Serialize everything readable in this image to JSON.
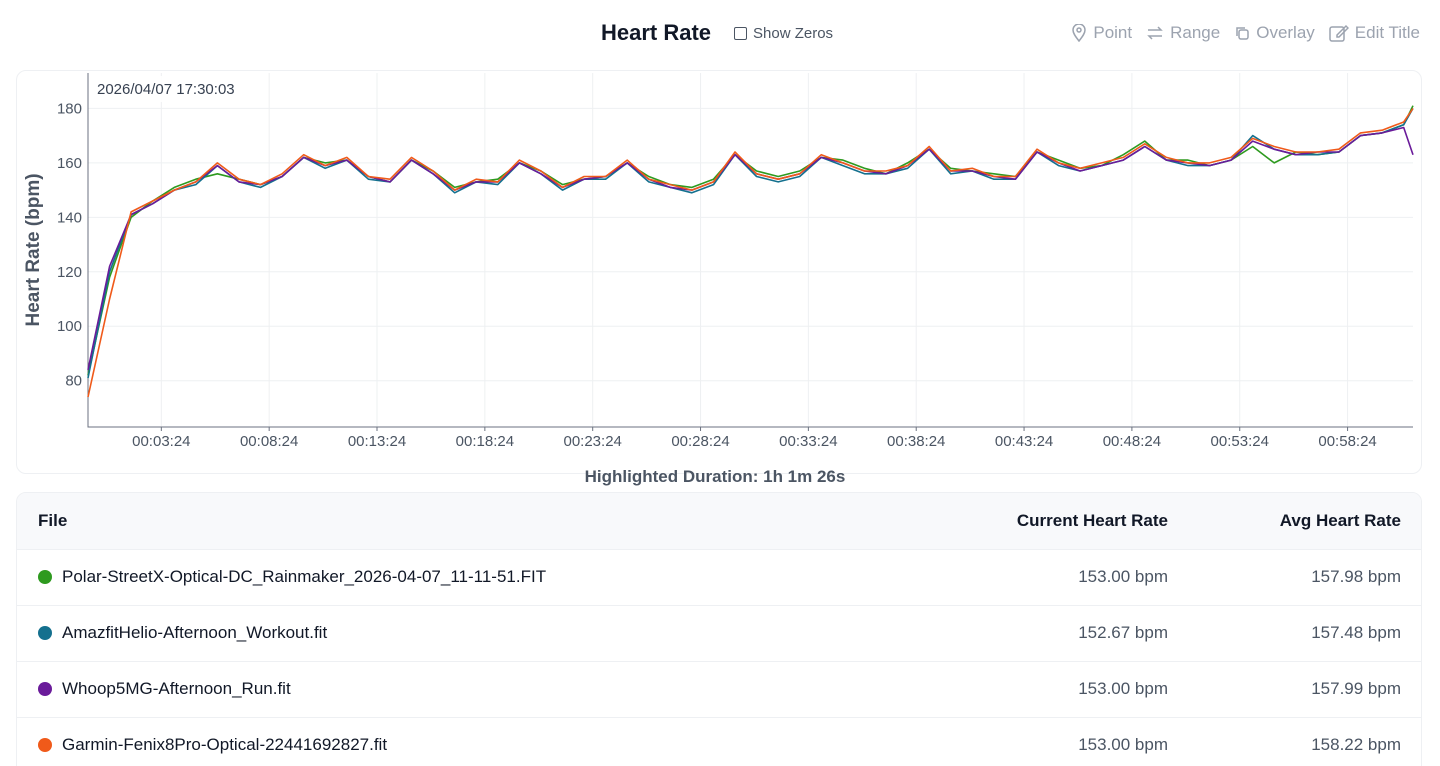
{
  "header": {
    "title": "Heart Rate",
    "toggle": "Show Zeros",
    "tools": [
      "Point",
      "Range",
      "Overlay",
      "Edit Title"
    ]
  },
  "chart_data": {
    "type": "line",
    "ylabel": "Heart Rate (bpm)",
    "tooltip": "2026/04/07 17:30:03",
    "caption": "Highlighted Duration: 1h 1m 26s",
    "x": [
      0,
      60,
      120,
      180,
      240,
      300,
      360,
      420,
      480,
      540,
      600,
      660,
      720,
      780,
      840,
      900,
      960,
      1020,
      1080,
      1140,
      1200,
      1260,
      1320,
      1380,
      1440,
      1500,
      1560,
      1620,
      1680,
      1740,
      1800,
      1860,
      1920,
      1980,
      2040,
      2100,
      2160,
      2220,
      2280,
      2340,
      2400,
      2460,
      2520,
      2580,
      2640,
      2700,
      2760,
      2820,
      2880,
      2940,
      3000,
      3060,
      3120,
      3180,
      3240,
      3300,
      3360,
      3420,
      3480,
      3540,
      3600,
      3660,
      3686
    ],
    "xlim": [
      0,
      3686
    ],
    "xticks": [
      {
        "value": 204,
        "label": "00:03:24"
      },
      {
        "value": 504,
        "label": "00:08:24"
      },
      {
        "value": 804,
        "label": "00:13:24"
      },
      {
        "value": 1104,
        "label": "00:18:24"
      },
      {
        "value": 1404,
        "label": "00:23:24"
      },
      {
        "value": 1704,
        "label": "00:28:24"
      },
      {
        "value": 2004,
        "label": "00:33:24"
      },
      {
        "value": 2304,
        "label": "00:38:24"
      },
      {
        "value": 2604,
        "label": "00:43:24"
      },
      {
        "value": 2904,
        "label": "00:48:24"
      },
      {
        "value": 3204,
        "label": "00:53:24"
      },
      {
        "value": 3504,
        "label": "00:58:24"
      }
    ],
    "ylim": [
      63,
      193
    ],
    "yticks": [
      80,
      100,
      120,
      140,
      160,
      180
    ],
    "grid": true,
    "series": [
      {
        "name": "Polar-StreetX-Optical-DC_Rainmaker_2026-04-07_11-11-51.FIT",
        "color": "#2e9a1f",
        "values": [
          82,
          118,
          140,
          146,
          151,
          154,
          156,
          154,
          152,
          155,
          162,
          160,
          161,
          155,
          153,
          161,
          157,
          151,
          153,
          154,
          160,
          157,
          152,
          154,
          155,
          160,
          155,
          152,
          151,
          154,
          163,
          157,
          155,
          157,
          162,
          161,
          158,
          156,
          160,
          165,
          158,
          157,
          156,
          155,
          164,
          161,
          158,
          159,
          163,
          168,
          161,
          161,
          159,
          161,
          166,
          160,
          164,
          163,
          164,
          170,
          171,
          174,
          181
        ]
      },
      {
        "name": "AmazfitHelio-Afternoon_Workout.fit",
        "color": "#14708e",
        "values": [
          81,
          120,
          141,
          145,
          150,
          152,
          159,
          153,
          151,
          155,
          162,
          158,
          161,
          154,
          153,
          161,
          156,
          149,
          153,
          152,
          160,
          156,
          150,
          154,
          154,
          160,
          153,
          151,
          149,
          152,
          163,
          155,
          153,
          155,
          162,
          159,
          156,
          156,
          158,
          165,
          156,
          157,
          154,
          154,
          164,
          159,
          157,
          159,
          161,
          166,
          161,
          159,
          159,
          161,
          170,
          165,
          163,
          163,
          164,
          170,
          171,
          174,
          180
        ]
      },
      {
        "name": "Whoop5MG-Afternoon_Run.fit",
        "color": "#6a1b9a",
        "values": [
          84,
          122,
          141,
          145,
          150,
          153,
          159,
          153,
          152,
          155,
          162,
          159,
          161,
          155,
          153,
          161,
          156,
          150,
          153,
          153,
          160,
          156,
          151,
          154,
          155,
          160,
          154,
          151,
          150,
          153,
          163,
          156,
          154,
          156,
          162,
          160,
          157,
          156,
          159,
          165,
          157,
          157,
          155,
          154,
          164,
          160,
          157,
          159,
          161,
          166,
          161,
          160,
          159,
          161,
          168,
          165,
          163,
          164,
          164,
          170,
          171,
          173,
          163
        ]
      },
      {
        "name": "Garmin-Fenix8Pro-Optical-22441692827.fit",
        "color": "#f05a1a",
        "values": [
          74,
          110,
          142,
          146,
          150,
          153,
          160,
          154,
          152,
          156,
          163,
          159,
          162,
          155,
          154,
          162,
          157,
          150,
          154,
          153,
          161,
          157,
          151,
          155,
          155,
          161,
          154,
          152,
          150,
          153,
          164,
          156,
          154,
          156,
          163,
          160,
          157,
          157,
          159,
          166,
          157,
          158,
          155,
          155,
          165,
          160,
          158,
          160,
          162,
          167,
          162,
          160,
          160,
          162,
          169,
          166,
          164,
          164,
          165,
          171,
          172,
          175,
          180
        ]
      }
    ]
  },
  "table": {
    "headers": [
      "File",
      "Current Heart Rate",
      "Avg Heart Rate"
    ],
    "rows": [
      [
        "Polar-StreetX-Optical-DC_Rainmaker_2026-04-07_11-11-51.FIT",
        "153.00 bpm",
        "157.98 bpm"
      ],
      [
        "AmazfitHelio-Afternoon_Workout.fit",
        "152.67 bpm",
        "157.48 bpm"
      ],
      [
        "Whoop5MG-Afternoon_Run.fit",
        "153.00 bpm",
        "157.99 bpm"
      ],
      [
        "Garmin-Fenix8Pro-Optical-22441692827.fit",
        "153.00 bpm",
        "158.22 bpm"
      ]
    ]
  }
}
